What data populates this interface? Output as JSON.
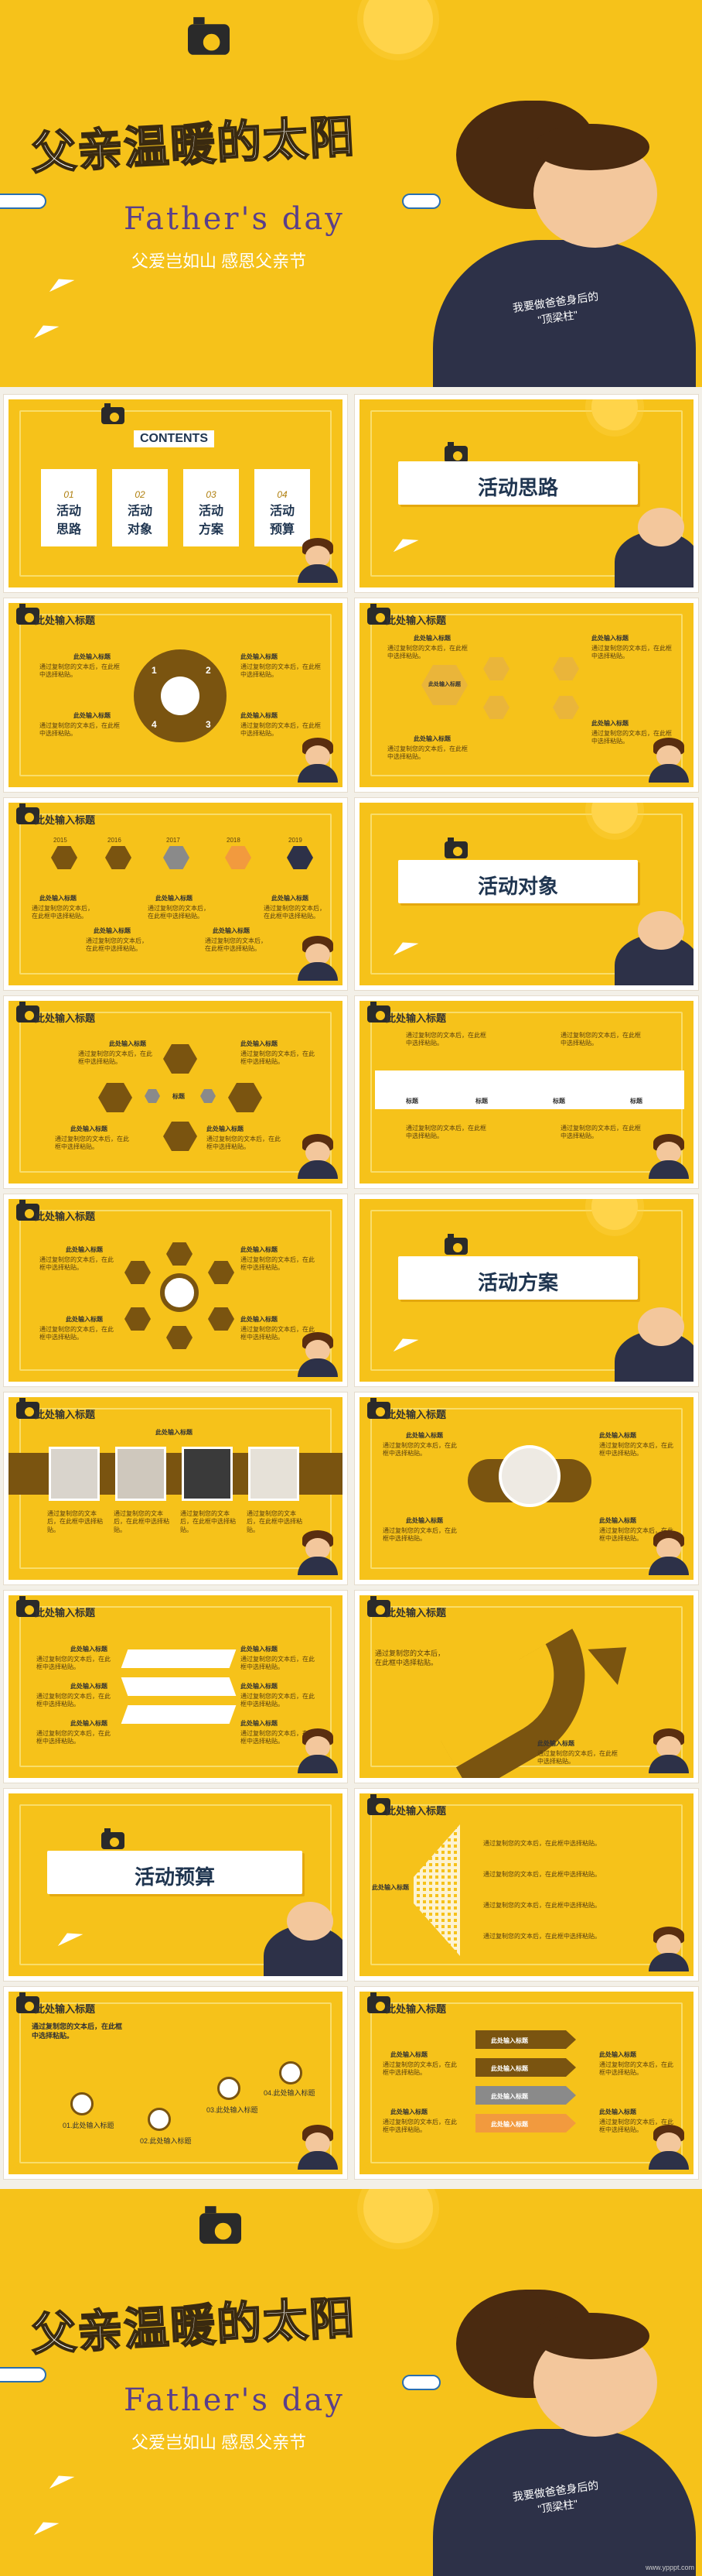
{
  "cover": {
    "title": "父亲温暖的太阳",
    "subtitle_en": "Father's day",
    "slogan": "父爱岂如山  感恩父亲节",
    "shirt_text": "我要做爸爸身后的\n\"顶梁柱\""
  },
  "contents": {
    "header": "CONTENTS",
    "items": [
      {
        "num": "01",
        "label": "活动\n思路"
      },
      {
        "num": "02",
        "label": "活动\n对象"
      },
      {
        "num": "03",
        "label": "活动\n方案"
      },
      {
        "num": "04",
        "label": "活动\n预算"
      }
    ]
  },
  "sections": {
    "s1": "活动思路",
    "s2": "活动对象",
    "s3": "活动方案",
    "s4": "活动预算"
  },
  "slide_title": "此处输入标题",
  "item_title": "此处输入标题",
  "item_desc": "通过复制您的文本后，在此框中选择粘贴。",
  "center_label": "标题",
  "nums": [
    "1",
    "2",
    "3",
    "4"
  ],
  "years": [
    "2015",
    "2016",
    "2017",
    "2018",
    "2019"
  ],
  "flow_steps": [
    "01.此处输入标题",
    "02.此处输入标题",
    "03.此处输入标题",
    "04.此处输入标题"
  ],
  "arrow_note": "通过复制您的文本后，在此框中选择粘贴。",
  "banner_items": [
    "此处输入标题",
    "此处输入标题",
    "此处输入标题",
    "此处输入标题"
  ],
  "watermark": "www.ypppt.com"
}
